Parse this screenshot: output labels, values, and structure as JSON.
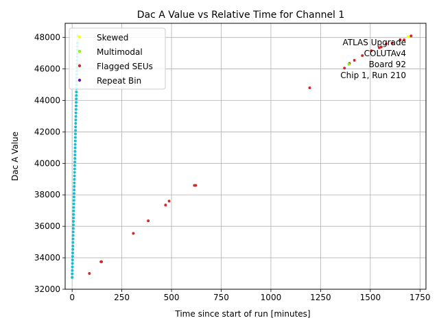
{
  "chart_data": {
    "type": "scatter",
    "title": "Dac A Value vs Relative Time for Channel 1",
    "xlabel": "Time since start of run [minutes]",
    "ylabel": "Dac A Value",
    "xlim": [
      -35,
      1780
    ],
    "ylim": [
      32000,
      48900
    ],
    "xticks": [
      0,
      250,
      500,
      750,
      1000,
      1250,
      1500,
      1750
    ],
    "yticks": [
      32000,
      34000,
      36000,
      38000,
      40000,
      42000,
      44000,
      46000,
      48000
    ],
    "xtick_labels": [
      "0",
      "250",
      "500",
      "750",
      "1000",
      "1250",
      "1500",
      "1750"
    ],
    "ytick_labels": [
      "32000",
      "34000",
      "36000",
      "38000",
      "40000",
      "42000",
      "44000",
      "46000",
      "48000"
    ],
    "grid": true,
    "legend": {
      "placement": "top-left",
      "entries": [
        {
          "label": "Skewed",
          "color": "#ffff00"
        },
        {
          "label": "Multimodal",
          "color": "#7fff00"
        },
        {
          "label": "Flagged SEUs",
          "color": "#d62728"
        },
        {
          "label": "Repeat Bin",
          "color": "#6a0dad"
        }
      ]
    },
    "annotation": {
      "lines": [
        "ATLAS Upgrade",
        "COLUTAv4",
        "Board 92",
        "Chip 1, Run 210"
      ],
      "placement": "top-right"
    },
    "main_series": {
      "color": "#17becf",
      "x_start": 0,
      "x_end": 28,
      "y_start": 32750,
      "y_end": 48100,
      "count": 70
    },
    "series": [
      {
        "color": "#d62728",
        "x": [
          87,
          145,
          148,
          308,
          383,
          470,
          488,
          615,
          622,
          1195,
          1370,
          1395,
          1420,
          1460,
          1505,
          1545,
          1555,
          1580,
          1610,
          1650,
          1670,
          1705
        ],
        "y": [
          33000,
          33750,
          33750,
          35550,
          36350,
          37350,
          37600,
          38600,
          38600,
          44800,
          46050,
          46350,
          46550,
          46850,
          47150,
          47350,
          47400,
          47600,
          47650,
          47850,
          47850,
          48100
        ]
      },
      {
        "color": "#ffff00",
        "x": [
          1690,
          24
        ],
        "y": [
          48050,
          47900
        ]
      },
      {
        "color": "#7fff00",
        "x": [
          1392
        ],
        "y": [
          46300
        ]
      }
    ]
  }
}
